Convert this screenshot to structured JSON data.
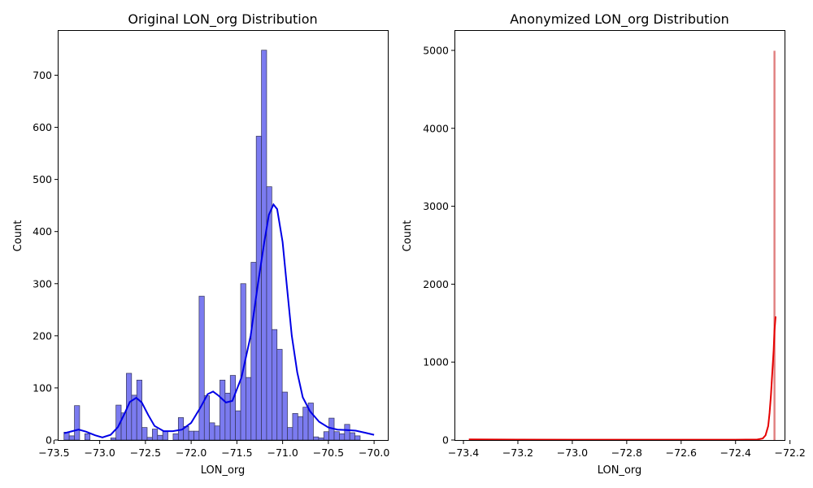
{
  "chart_data": [
    {
      "type": "histogram",
      "title": "Original LON_org Distribution",
      "xlabel": "LON_org",
      "ylabel": "Count",
      "xlim": [
        -73.45,
        -69.85
      ],
      "ylim": [
        0,
        785
      ],
      "xticks": [
        -73.5,
        -73.0,
        -72.5,
        -72.0,
        -71.5,
        -71.0,
        -70.5,
        -70.0
      ],
      "xtick_labels": [
        "−73.5",
        "−73.0",
        "−72.5",
        "−72.0",
        "−71.5",
        "−71.0",
        "−70.5",
        "−70.0"
      ],
      "yticks": [
        0,
        100,
        200,
        300,
        400,
        500,
        600,
        700
      ],
      "ytick_labels": [
        "0",
        "100",
        "200",
        "300",
        "400",
        "500",
        "600",
        "700"
      ],
      "bar_color": "#7b7bf0",
      "bar_edge": "#333355",
      "kde_color": "#0000e6",
      "grid": false,
      "bins": {
        "start": -73.39,
        "width": 0.0568,
        "counts": [
          15,
          8,
          66,
          0,
          12,
          0,
          0,
          0,
          0,
          4,
          67,
          52,
          128,
          86,
          115,
          24,
          5,
          21,
          9,
          17,
          0,
          12,
          43,
          26,
          17,
          17,
          276,
          85,
          33,
          27,
          115,
          90,
          124,
          56,
          300,
          120,
          341,
          583,
          748,
          486,
          212,
          174,
          92,
          24,
          51,
          45,
          63,
          71,
          6,
          4,
          16,
          42,
          16,
          12,
          30,
          14,
          8
        ]
      },
      "kde": {
        "x": [
          -73.39,
          -73.3,
          -73.23,
          -73.15,
          -73.05,
          -72.97,
          -72.88,
          -72.8,
          -72.73,
          -72.67,
          -72.6,
          -72.54,
          -72.47,
          -72.4,
          -72.3,
          -72.2,
          -72.1,
          -72.0,
          -71.9,
          -71.82,
          -71.76,
          -71.7,
          -71.62,
          -71.55,
          -71.45,
          -71.35,
          -71.27,
          -71.2,
          -71.15,
          -71.1,
          -71.06,
          -71.0,
          -70.95,
          -70.9,
          -70.84,
          -70.78,
          -70.7,
          -70.6,
          -70.5,
          -70.4,
          -70.3,
          -70.2,
          -70.1,
          -70.0
        ],
        "y": [
          13,
          17,
          20,
          16,
          9,
          5,
          10,
          25,
          50,
          73,
          81,
          72,
          48,
          27,
          17,
          17,
          20,
          33,
          62,
          88,
          93,
          85,
          72,
          75,
          120,
          200,
          300,
          380,
          432,
          452,
          443,
          380,
          290,
          200,
          130,
          82,
          55,
          35,
          24,
          20,
          19,
          18,
          14,
          10
        ]
      }
    },
    {
      "type": "histogram",
      "title": "Anonymized LON_org Distribution",
      "xlabel": "LON_org",
      "ylabel": "Count",
      "xlim": [
        -73.43,
        -72.22
      ],
      "ylim": [
        0,
        5250
      ],
      "xticks": [
        -73.4,
        -73.2,
        -73.0,
        -72.8,
        -72.6,
        -72.4,
        -72.2
      ],
      "xtick_labels": [
        "−73.4",
        "−73.2",
        "−73.0",
        "−72.8",
        "−72.6",
        "−72.4",
        "−72.2"
      ],
      "yticks": [
        0,
        1000,
        2000,
        3000,
        4000,
        5000
      ],
      "ytick_labels": [
        "0",
        "1000",
        "2000",
        "3000",
        "4000",
        "5000"
      ],
      "bar_color": "#e07f7f",
      "kde_color": "#e60000",
      "grid": false,
      "spike": {
        "x": -72.257,
        "count": 4995
      },
      "kde": {
        "x": [
          -73.38,
          -73.2,
          -73.0,
          -72.8,
          -72.6,
          -72.4,
          -72.32,
          -72.3,
          -72.29,
          -72.28,
          -72.275,
          -72.27,
          -72.265,
          -72.26,
          -72.257,
          -72.253
        ],
        "y": [
          8,
          5,
          4,
          4,
          4,
          4,
          6,
          20,
          60,
          180,
          350,
          580,
          860,
          1150,
          1400,
          1585
        ]
      }
    }
  ]
}
